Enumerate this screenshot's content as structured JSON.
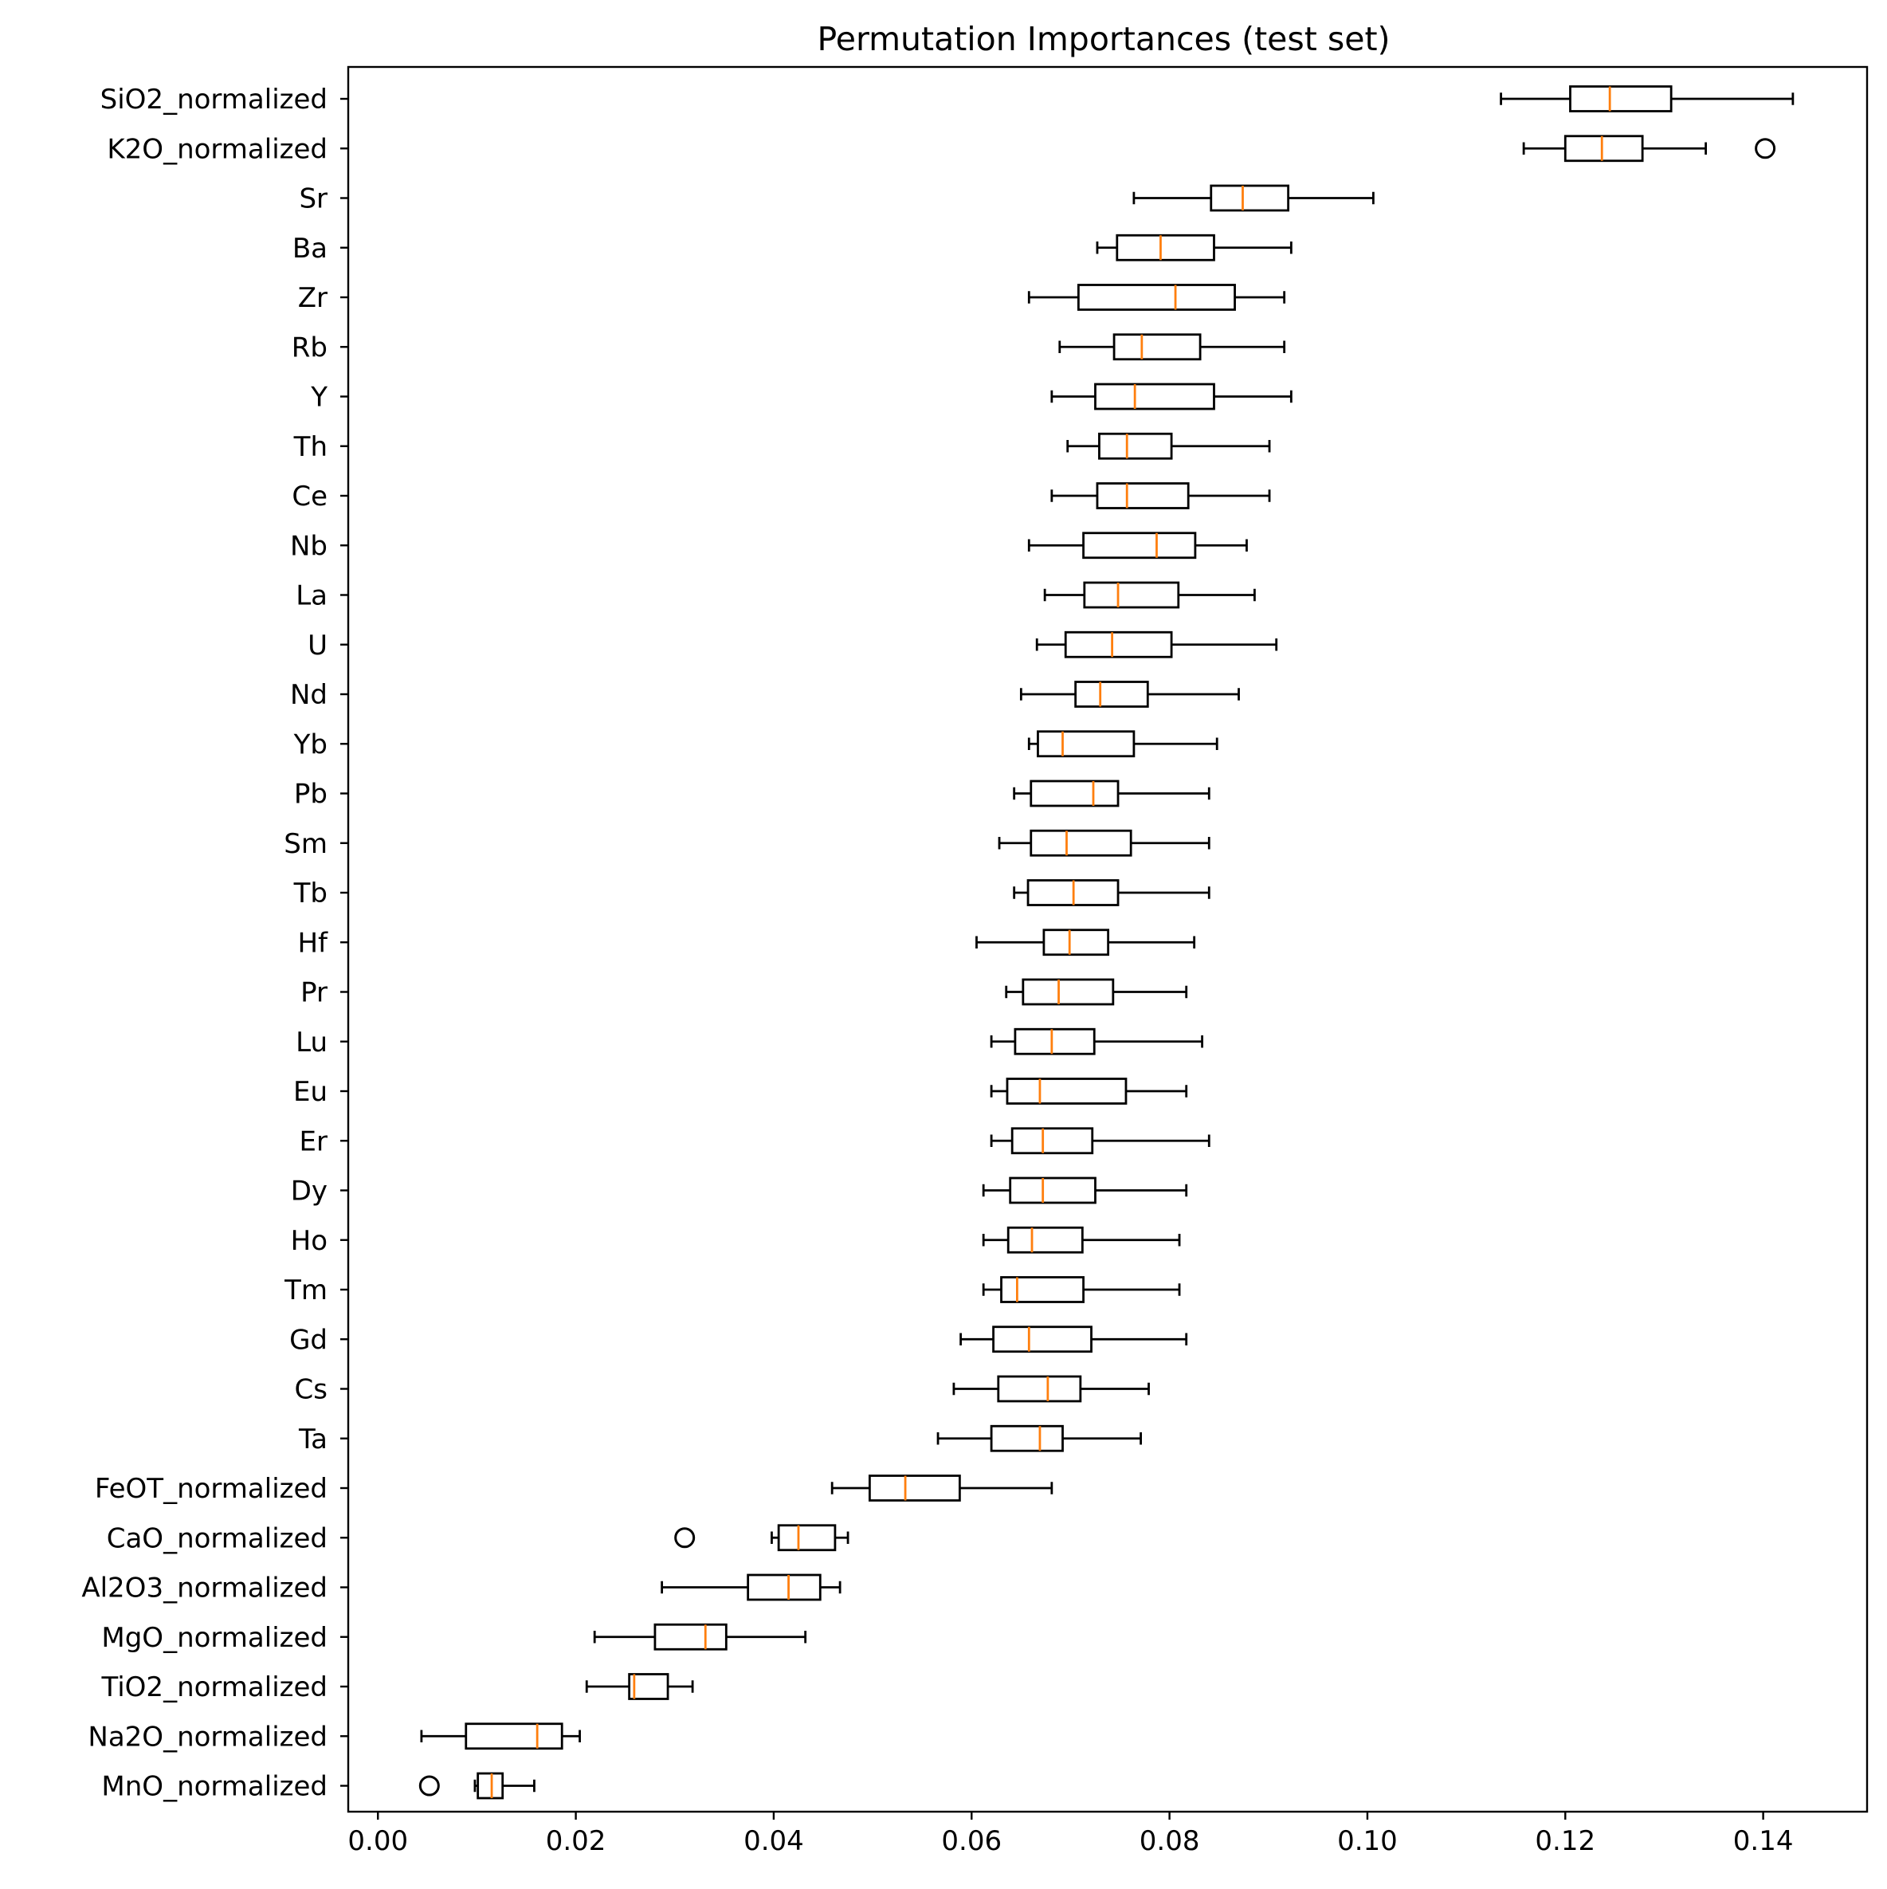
{
  "chart_data": {
    "type": "boxplot",
    "orientation": "horizontal",
    "title": "Permutation Importances (test set)",
    "xlim": [
      -0.003,
      0.1505
    ],
    "xticks": [
      0.0,
      0.02,
      0.04,
      0.06,
      0.08,
      0.1,
      0.12,
      0.14
    ],
    "xtick_labels": [
      "0.00",
      "0.02",
      "0.04",
      "0.06",
      "0.08",
      "0.10",
      "0.12",
      "0.14"
    ],
    "xlabel": "",
    "ylabel": "",
    "grid": false,
    "colors": {
      "box": "#000000",
      "median": "#ff7f0e",
      "background": "#ffffff"
    },
    "series": [
      {
        "label": "SiO2_normalized",
        "whislo": 0.1135,
        "q1": 0.1205,
        "med": 0.1245,
        "q3": 0.1307,
        "whishi": 0.143,
        "fliers": []
      },
      {
        "label": "K2O_normalized",
        "whislo": 0.1158,
        "q1": 0.12,
        "med": 0.1237,
        "q3": 0.1278,
        "whishi": 0.1342,
        "fliers": [
          0.1402
        ]
      },
      {
        "label": "Sr",
        "whislo": 0.0764,
        "q1": 0.0842,
        "med": 0.0874,
        "q3": 0.092,
        "whishi": 0.1006,
        "fliers": []
      },
      {
        "label": "Ba",
        "whislo": 0.0727,
        "q1": 0.0747,
        "med": 0.0791,
        "q3": 0.0845,
        "whishi": 0.0923,
        "fliers": []
      },
      {
        "label": "Zr",
        "whislo": 0.0658,
        "q1": 0.0708,
        "med": 0.0806,
        "q3": 0.0866,
        "whishi": 0.0916,
        "fliers": []
      },
      {
        "label": "Rb",
        "whislo": 0.0689,
        "q1": 0.0744,
        "med": 0.0772,
        "q3": 0.0831,
        "whishi": 0.0916,
        "fliers": []
      },
      {
        "label": "Y",
        "whislo": 0.0681,
        "q1": 0.0725,
        "med": 0.0765,
        "q3": 0.0845,
        "whishi": 0.0923,
        "fliers": []
      },
      {
        "label": "Th",
        "whislo": 0.0697,
        "q1": 0.0729,
        "med": 0.0757,
        "q3": 0.0802,
        "whishi": 0.0901,
        "fliers": []
      },
      {
        "label": "Ce",
        "whislo": 0.0681,
        "q1": 0.0727,
        "med": 0.0757,
        "q3": 0.0819,
        "whishi": 0.0901,
        "fliers": []
      },
      {
        "label": "Nb",
        "whislo": 0.0658,
        "q1": 0.0713,
        "med": 0.0787,
        "q3": 0.0826,
        "whishi": 0.0878,
        "fliers": []
      },
      {
        "label": "La",
        "whislo": 0.0674,
        "q1": 0.0714,
        "med": 0.0748,
        "q3": 0.0809,
        "whishi": 0.0886,
        "fliers": []
      },
      {
        "label": "U",
        "whislo": 0.0666,
        "q1": 0.0695,
        "med": 0.0742,
        "q3": 0.0802,
        "whishi": 0.0908,
        "fliers": []
      },
      {
        "label": "Nd",
        "whislo": 0.065,
        "q1": 0.0705,
        "med": 0.073,
        "q3": 0.0778,
        "whishi": 0.087,
        "fliers": []
      },
      {
        "label": "Yb",
        "whislo": 0.0658,
        "q1": 0.0667,
        "med": 0.0692,
        "q3": 0.0764,
        "whishi": 0.0848,
        "fliers": []
      },
      {
        "label": "Pb",
        "whislo": 0.0643,
        "q1": 0.066,
        "med": 0.0723,
        "q3": 0.0748,
        "whishi": 0.084,
        "fliers": []
      },
      {
        "label": "Sm",
        "whislo": 0.0628,
        "q1": 0.066,
        "med": 0.0696,
        "q3": 0.0761,
        "whishi": 0.084,
        "fliers": []
      },
      {
        "label": "Tb",
        "whislo": 0.0643,
        "q1": 0.0657,
        "med": 0.0703,
        "q3": 0.0748,
        "whishi": 0.084,
        "fliers": []
      },
      {
        "label": "Hf",
        "whislo": 0.0605,
        "q1": 0.0673,
        "med": 0.0699,
        "q3": 0.0738,
        "whishi": 0.0825,
        "fliers": []
      },
      {
        "label": "Pr",
        "whislo": 0.0635,
        "q1": 0.0652,
        "med": 0.0688,
        "q3": 0.0743,
        "whishi": 0.0817,
        "fliers": []
      },
      {
        "label": "Lu",
        "whislo": 0.062,
        "q1": 0.0644,
        "med": 0.0681,
        "q3": 0.0724,
        "whishi": 0.0833,
        "fliers": []
      },
      {
        "label": "Eu",
        "whislo": 0.062,
        "q1": 0.0636,
        "med": 0.0669,
        "q3": 0.0756,
        "whishi": 0.0817,
        "fliers": []
      },
      {
        "label": "Er",
        "whislo": 0.062,
        "q1": 0.0641,
        "med": 0.0672,
        "q3": 0.0722,
        "whishi": 0.084,
        "fliers": []
      },
      {
        "label": "Dy",
        "whislo": 0.0612,
        "q1": 0.0639,
        "med": 0.0672,
        "q3": 0.0725,
        "whishi": 0.0817,
        "fliers": []
      },
      {
        "label": "Ho",
        "whislo": 0.0612,
        "q1": 0.0637,
        "med": 0.0661,
        "q3": 0.0712,
        "whishi": 0.081,
        "fliers": []
      },
      {
        "label": "Tm",
        "whislo": 0.0612,
        "q1": 0.063,
        "med": 0.0646,
        "q3": 0.0713,
        "whishi": 0.081,
        "fliers": []
      },
      {
        "label": "Gd",
        "whislo": 0.0589,
        "q1": 0.0622,
        "med": 0.0658,
        "q3": 0.0721,
        "whishi": 0.0817,
        "fliers": []
      },
      {
        "label": "Cs",
        "whislo": 0.0582,
        "q1": 0.0627,
        "med": 0.0677,
        "q3": 0.071,
        "whishi": 0.0779,
        "fliers": []
      },
      {
        "label": "Ta",
        "whislo": 0.0566,
        "q1": 0.062,
        "med": 0.0669,
        "q3": 0.0692,
        "whishi": 0.0771,
        "fliers": []
      },
      {
        "label": "FeOT_normalized",
        "whislo": 0.0459,
        "q1": 0.0497,
        "med": 0.0533,
        "q3": 0.0588,
        "whishi": 0.0681,
        "fliers": []
      },
      {
        "label": "CaO_normalized",
        "whislo": 0.0398,
        "q1": 0.0405,
        "med": 0.0425,
        "q3": 0.0462,
        "whishi": 0.0475,
        "fliers": [
          0.031
        ]
      },
      {
        "label": "Al2O3_normalized",
        "whislo": 0.0287,
        "q1": 0.0374,
        "med": 0.0415,
        "q3": 0.0447,
        "whishi": 0.0467,
        "fliers": []
      },
      {
        "label": "MgO_normalized",
        "whislo": 0.0219,
        "q1": 0.028,
        "med": 0.0331,
        "q3": 0.0352,
        "whishi": 0.0432,
        "fliers": []
      },
      {
        "label": "TiO2_normalized",
        "whislo": 0.0211,
        "q1": 0.0254,
        "med": 0.0259,
        "q3": 0.0293,
        "whishi": 0.0318,
        "fliers": []
      },
      {
        "label": "Na2O_normalized",
        "whislo": 0.0044,
        "q1": 0.0089,
        "med": 0.0161,
        "q3": 0.0186,
        "whishi": 0.0204,
        "fliers": []
      },
      {
        "label": "MnO_normalized",
        "whislo": 0.0098,
        "q1": 0.0101,
        "med": 0.0115,
        "q3": 0.0126,
        "whishi": 0.0158,
        "fliers": [
          0.0052
        ]
      }
    ]
  }
}
